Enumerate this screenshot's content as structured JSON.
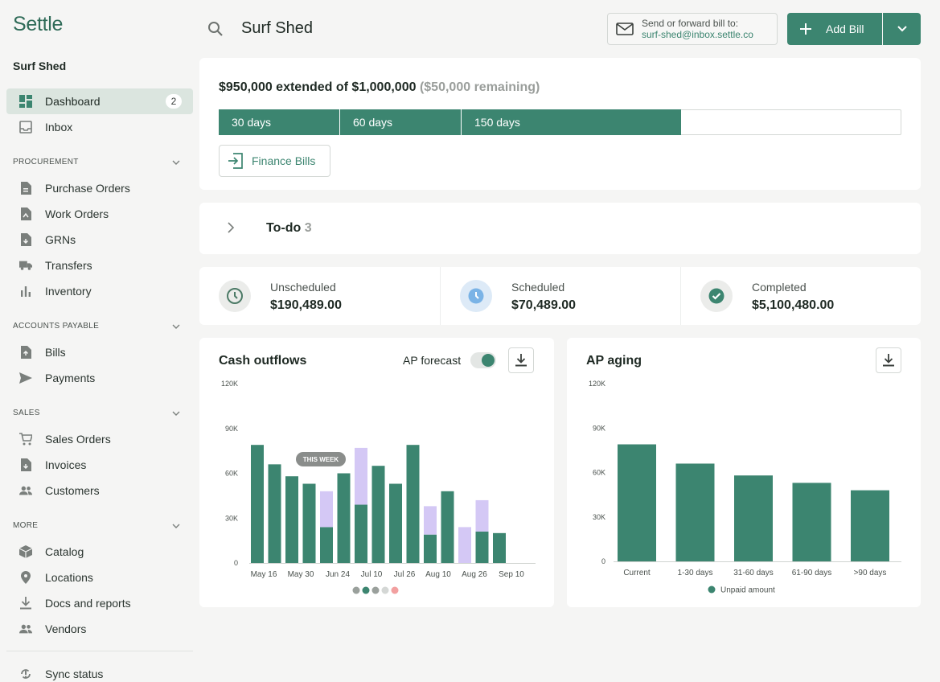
{
  "app": {
    "logo": "Settle",
    "org": "Surf Shed"
  },
  "sidebar": {
    "top": [
      {
        "label": "Dashboard",
        "icon": "dashboard-icon",
        "badge": "2",
        "active": true
      },
      {
        "label": "Inbox",
        "icon": "inbox-icon"
      }
    ],
    "sections": [
      {
        "title": "PROCUREMENT",
        "items": [
          {
            "label": "Purchase Orders",
            "icon": "document-icon"
          },
          {
            "label": "Work Orders",
            "icon": "work-order-icon"
          },
          {
            "label": "GRNs",
            "icon": "grn-icon"
          },
          {
            "label": "Transfers",
            "icon": "truck-icon"
          },
          {
            "label": "Inventory",
            "icon": "bar-chart-icon"
          }
        ]
      },
      {
        "title": "ACCOUNTS PAYABLE",
        "items": [
          {
            "label": "Bills",
            "icon": "bill-icon"
          },
          {
            "label": "Payments",
            "icon": "send-icon"
          }
        ]
      },
      {
        "title": "SALES",
        "items": [
          {
            "label": "Sales Orders",
            "icon": "cart-icon"
          },
          {
            "label": "Invoices",
            "icon": "invoice-icon"
          },
          {
            "label": "Customers",
            "icon": "people-icon"
          }
        ]
      },
      {
        "title": "MORE",
        "items": [
          {
            "label": "Catalog",
            "icon": "box-icon"
          },
          {
            "label": "Locations",
            "icon": "pin-icon"
          },
          {
            "label": "Docs and reports",
            "icon": "download-icon"
          },
          {
            "label": "Vendors",
            "icon": "people-icon"
          }
        ]
      }
    ],
    "sync": "Sync status"
  },
  "header": {
    "title": "Surf Shed",
    "email_line1": "Send or forward bill to:",
    "email_line2": "surf-shed@inbox.settle.co",
    "add_bill": "Add Bill"
  },
  "credit": {
    "title": "$950,000 extended of $1,000,000",
    "remaining": "($50,000 remaining)",
    "segments": [
      "30 days",
      "60 days",
      "150 days"
    ],
    "used_fraction": 0.95,
    "finance_button": "Finance Bills"
  },
  "todo": {
    "label": "To-do",
    "count": "3"
  },
  "stats": [
    {
      "label": "Unscheduled",
      "value": "$190,489.00",
      "icon": "clock-icon"
    },
    {
      "label": "Scheduled",
      "value": "$70,489.00",
      "icon": "clock-filled-icon"
    },
    {
      "label": "Completed",
      "value": "$5,100,480.00",
      "icon": "check-circle-icon"
    }
  ],
  "cash_outflows": {
    "title": "Cash outflows",
    "forecast_label": "AP forecast",
    "forecast_on": true,
    "this_week_label": "THIS WEEK",
    "colors": {
      "actual": "#3c8570",
      "forecast": "#d4c8f5"
    },
    "chart_data": {
      "type": "bar",
      "stacked": true,
      "ylim": [
        0,
        120000
      ],
      "yticks": [
        "0",
        "30K",
        "60K",
        "90K",
        "120K"
      ],
      "xticks": [
        "May 16",
        "May 30",
        "Jun 24",
        "Jul 10",
        "Jul 26",
        "Aug 10",
        "Aug 26",
        "Sep 10"
      ],
      "series": [
        {
          "values": [
            79000,
            66000,
            58000,
            53000,
            24000,
            60000,
            39000,
            65000,
            53000,
            79000,
            19000,
            48000,
            0,
            21000,
            20000
          ]
        },
        {
          "values": [
            0,
            0,
            0,
            0,
            24000,
            0,
            38000,
            0,
            0,
            0,
            19000,
            0,
            24000,
            21000,
            0
          ]
        }
      ],
      "pager_dots": 5
    }
  },
  "ap_aging": {
    "title": "AP aging",
    "legend": "Unpaid amount",
    "chart_data": {
      "type": "bar",
      "ylim": [
        0,
        120000
      ],
      "yticks": [
        "0",
        "30K",
        "60K",
        "90K",
        "120K"
      ],
      "categories": [
        "Current",
        "1-30 days",
        "31-60 days",
        "61-90 days",
        ">90 days"
      ],
      "values": [
        79000,
        66000,
        58000,
        53000,
        48000
      ]
    }
  }
}
